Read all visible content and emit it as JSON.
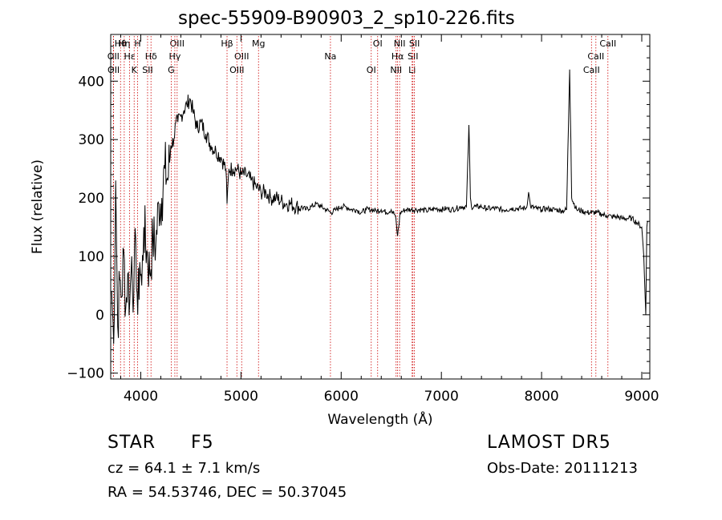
{
  "chart_data": {
    "type": "line",
    "title": "spec-55909-B90903_2_sp10-226.fits",
    "xlabel": "Wavelength (Å)",
    "ylabel": "Flux (relative)",
    "xlim": [
      3700,
      9080
    ],
    "ylim": [
      -110,
      480
    ],
    "x_ticks": [
      4000,
      5000,
      6000,
      7000,
      8000,
      9000
    ],
    "y_ticks": [
      -100,
      0,
      100,
      200,
      300,
      400
    ],
    "grid": false,
    "line_color": "#000000",
    "marker_color": "#cc0000",
    "series": [
      {
        "x": [
          3710,
          3730,
          3750,
          3770,
          3790,
          3810,
          3830,
          3850,
          3870,
          3890,
          3910,
          3930,
          3950,
          3970,
          3990,
          4010,
          4030,
          4060,
          4090,
          4120,
          4150,
          4180,
          4210,
          4240,
          4270,
          4300,
          4330,
          4350,
          4370,
          4400,
          4430,
          4460,
          4490,
          4520,
          4560,
          4600,
          4650,
          4700,
          4750,
          4800,
          4850,
          4861,
          4880,
          4920,
          4960,
          5000,
          5050,
          5100,
          5150,
          5200,
          5250,
          5300,
          5350,
          5400,
          5450,
          5500,
          5550,
          5600,
          5650,
          5700,
          5750,
          5800,
          5850,
          5900,
          5950,
          6000,
          6050,
          6100,
          6150,
          6200,
          6250,
          6300,
          6350,
          6400,
          6450,
          6500,
          6540,
          6563,
          6590,
          6620,
          6650,
          6700,
          6750,
          6800,
          6850,
          6900,
          6950,
          7000,
          7050,
          7100,
          7150,
          7200,
          7250,
          7275,
          7290,
          7300,
          7350,
          7400,
          7450,
          7500,
          7550,
          7600,
          7650,
          7700,
          7750,
          7800,
          7850,
          7870,
          7890,
          7950,
          8000,
          8050,
          8100,
          8150,
          8200,
          8250,
          8280,
          8292,
          8300,
          8350,
          8400,
          8450,
          8500,
          8550,
          8600,
          8650,
          8700,
          8750,
          8800,
          8850,
          8900,
          8950,
          9000,
          9020,
          9040,
          9050,
          9060
        ],
        "y": [
          40,
          -50,
          230,
          -20,
          60,
          30,
          110,
          10,
          70,
          20,
          100,
          30,
          130,
          0,
          90,
          50,
          150,
          110,
          70,
          130,
          120,
          190,
          200,
          250,
          230,
          290,
          300,
          330,
          330,
          340,
          350,
          360,
          370,
          350,
          320,
          330,
          310,
          290,
          280,
          270,
          250,
          190,
          250,
          250,
          250,
          240,
          240,
          230,
          220,
          210,
          210,
          200,
          200,
          195,
          190,
          190,
          185,
          185,
          180,
          185,
          190,
          185,
          180,
          175,
          180,
          185,
          185,
          180,
          180,
          175,
          180,
          180,
          178,
          180,
          175,
          180,
          170,
          135,
          175,
          178,
          180,
          180,
          180,
          180,
          178,
          180,
          182,
          180,
          182,
          180,
          182,
          185,
          185,
          325,
          200,
          185,
          185,
          185,
          182,
          182,
          182,
          180,
          180,
          182,
          182,
          182,
          183,
          210,
          185,
          182,
          180,
          182,
          180,
          180,
          178,
          180,
          420,
          300,
          200,
          180,
          178,
          175,
          175,
          175,
          172,
          170,
          168,
          168,
          165,
          165,
          165,
          158,
          150,
          100,
          0,
          150,
          160
        ]
      }
    ],
    "line_marks": [
      {
        "label": "Hθ",
        "x": 3798
      },
      {
        "label": "OII",
        "x": 3727
      },
      {
        "label": "OII",
        "x": 3729
      },
      {
        "label": "Hη",
        "x": 3835
      },
      {
        "label": "Hε",
        "x": 3889
      },
      {
        "label": "K",
        "x": 3934
      },
      {
        "label": "H",
        "x": 3968
      },
      {
        "label": "Hδ",
        "x": 4102
      },
      {
        "label": "SII",
        "x": 4068
      },
      {
        "label": "OIII",
        "x": 4363
      },
      {
        "label": "Hγ",
        "x": 4340
      },
      {
        "label": "G",
        "x": 4304
      },
      {
        "label": "Hβ",
        "x": 4861
      },
      {
        "label": "OIII",
        "x": 5007
      },
      {
        "label": "OIII",
        "x": 4959
      },
      {
        "label": "Mg",
        "x": 5175
      },
      {
        "label": "Na",
        "x": 5893
      },
      {
        "label": "OI",
        "x": 6300
      },
      {
        "label": "OI",
        "x": 6364
      },
      {
        "label": "Hα",
        "x": 6563
      },
      {
        "label": "NII",
        "x": 6548
      },
      {
        "label": "NII",
        "x": 6583
      },
      {
        "label": "SII",
        "x": 6716
      },
      {
        "label": "Li",
        "x": 6708
      },
      {
        "label": "SII",
        "x": 6731
      },
      {
        "label": "CaII",
        "x": 8542
      },
      {
        "label": "CaII",
        "x": 8498
      },
      {
        "label": "CaII",
        "x": 8662
      }
    ]
  },
  "info": {
    "object_class": "STAR",
    "subclass": "F5",
    "survey": "LAMOST  DR5",
    "cz": "cz = 64.1 ± 7.1 km/s",
    "obs_date": "Obs-Date: 20111213",
    "coords": "RA =  54.53746, DEC =  50.37045"
  }
}
